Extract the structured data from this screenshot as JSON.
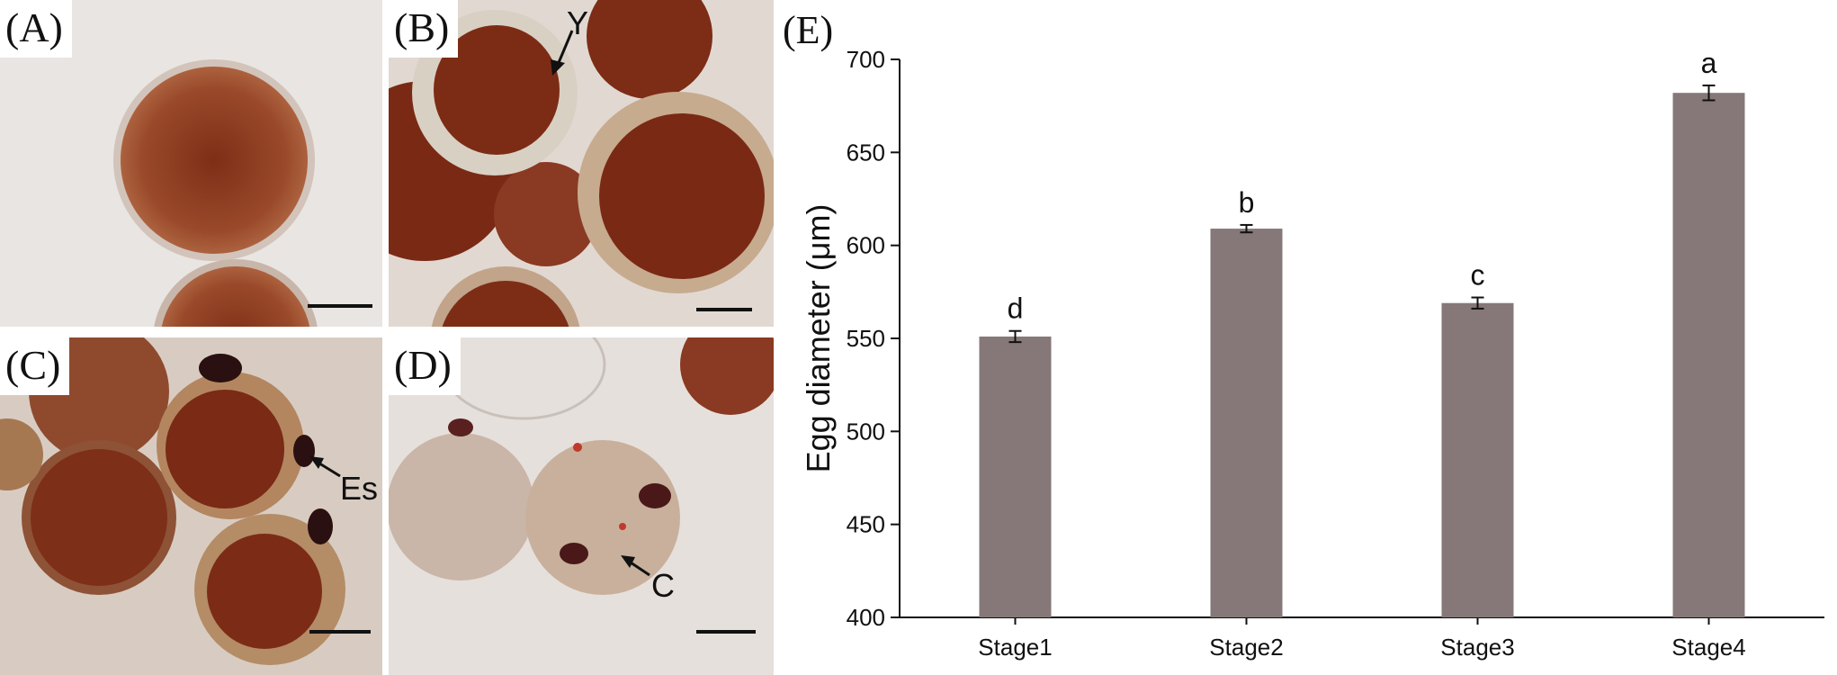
{
  "panels": [
    {
      "id": "A",
      "label": "(A)"
    },
    {
      "id": "B",
      "label": "(B)",
      "annotation": "Y"
    },
    {
      "id": "C",
      "label": "(C)",
      "annotation": "Es"
    },
    {
      "id": "D",
      "label": "(D)",
      "annotation": "C"
    }
  ],
  "colors": {
    "bar": "#867878",
    "axis": "#111111",
    "egg": "#8a3a22",
    "background": "#e4dcd6"
  },
  "chart_data": {
    "type": "bar",
    "panel_label": "(E)",
    "title": "",
    "xlabel": "",
    "ylabel": "Egg diameter (μm)",
    "categories": [
      "Stage1",
      "Stage2",
      "Stage3",
      "Stage4"
    ],
    "values": [
      551,
      609,
      569,
      682
    ],
    "errors": [
      3,
      2,
      3,
      4
    ],
    "significance": [
      "d",
      "b",
      "c",
      "a"
    ],
    "ylim": [
      400,
      700
    ],
    "yticks": [
      400,
      450,
      500,
      550,
      600,
      650,
      700
    ],
    "grid": false,
    "legend": "none"
  }
}
